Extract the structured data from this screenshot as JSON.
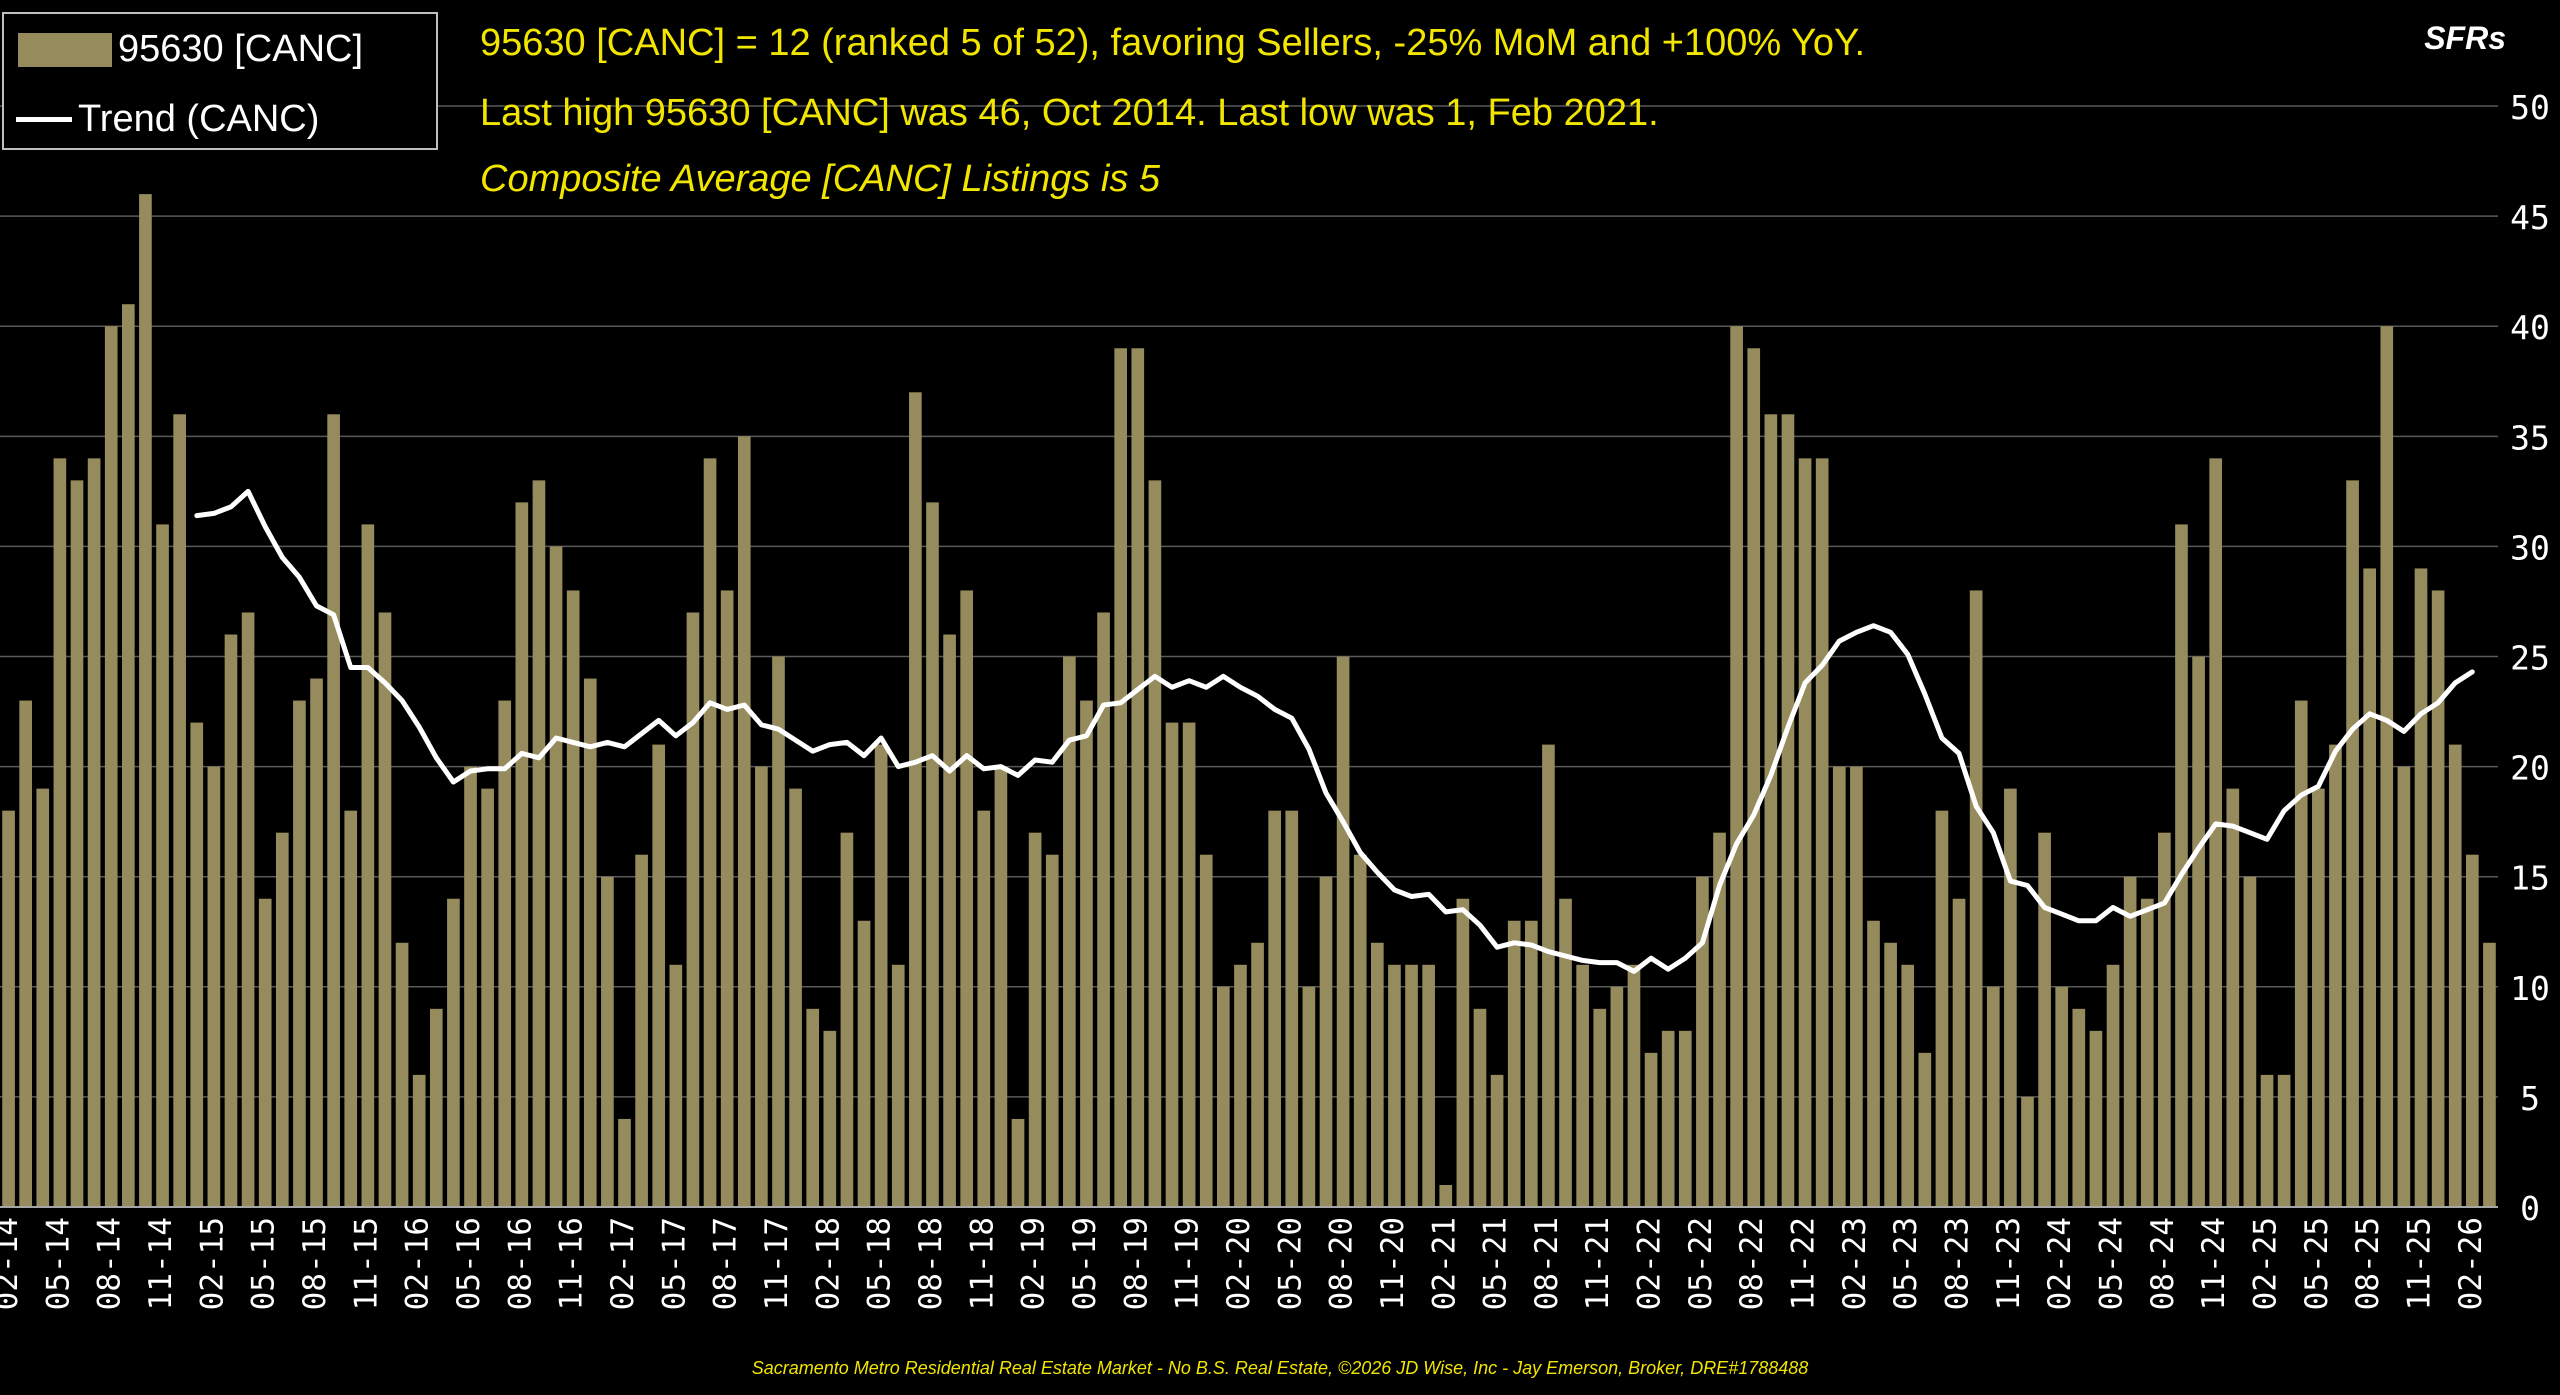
{
  "header": {
    "line1": "95630 [CANC] = 12 (ranked 5 of 52), favoring Sellers, -25% MoM and +100% YoY.",
    "line2": "Last high 95630 [CANC] was 46, Oct 2014. Last low was 1, Feb 2021.",
    "line3": "Composite Average [CANC] Listings is 5"
  },
  "unit_label": "SFRs",
  "footer": "Sacramento Metro Residential Real Estate Market - No B.S. Real Estate, ©2026 JD Wise, Inc - Jay Emerson, Broker, DRE#1788488",
  "colors": {
    "background": "#000000",
    "bar": "#968b5c",
    "trend": "#ffffff",
    "header_text": "#f2e600",
    "grid": "#595959",
    "axis_text": "#ffffff"
  },
  "chart_data": {
    "type": "bar",
    "title": "95630 [CANC]",
    "xlabel": "",
    "ylabel": "SFRs",
    "ylim": [
      0,
      52
    ],
    "yticks": [
      0,
      5,
      10,
      15,
      20,
      25,
      30,
      35,
      40,
      45,
      50
    ],
    "grid": true,
    "legend": "top-left",
    "x_tick_labels": [
      "02-14",
      "05-14",
      "08-14",
      "11-14",
      "02-15",
      "05-15",
      "08-15",
      "11-15",
      "02-16",
      "05-16",
      "08-16",
      "11-16",
      "02-17",
      "05-17",
      "08-17",
      "11-17",
      "02-18",
      "05-18",
      "08-18",
      "11-18",
      "02-19",
      "05-19",
      "08-19",
      "11-19",
      "02-20",
      "05-20",
      "08-20",
      "11-20",
      "02-21",
      "05-21",
      "08-21",
      "11-21",
      "02-22",
      "05-22",
      "08-22",
      "11-22",
      "02-23",
      "05-23",
      "08-23",
      "11-23",
      "02-24",
      "05-24",
      "08-24",
      "11-24",
      "02-25",
      "05-25",
      "08-25",
      "11-25",
      "02-26"
    ],
    "series": [
      {
        "name": "95630 [CANC]",
        "kind": "bar",
        "values": [
          18,
          23,
          19,
          34,
          33,
          34,
          40,
          41,
          46,
          31,
          36,
          22,
          20,
          26,
          27,
          14,
          17,
          23,
          24,
          36,
          18,
          31,
          27,
          12,
          6,
          9,
          14,
          20,
          19,
          23,
          32,
          33,
          30,
          28,
          24,
          15,
          4,
          16,
          21,
          11,
          27,
          34,
          28,
          35,
          20,
          25,
          19,
          9,
          8,
          17,
          13,
          21,
          11,
          37,
          32,
          26,
          28,
          18,
          20,
          4,
          17,
          16,
          25,
          23,
          27,
          39,
          39,
          33,
          22,
          22,
          16,
          10,
          11,
          12,
          18,
          18,
          10,
          15,
          25,
          16,
          12,
          11,
          11,
          11,
          1,
          14,
          9,
          6,
          13,
          13,
          21,
          14,
          11,
          9,
          10,
          11,
          7,
          8,
          8,
          15,
          17,
          40,
          39,
          36,
          36,
          34,
          34,
          20,
          20,
          13,
          12,
          11,
          7,
          18,
          14,
          28,
          10,
          19,
          5,
          17,
          10,
          9,
          8,
          11,
          15,
          14,
          17,
          31,
          25,
          34,
          19,
          15,
          6,
          6,
          23,
          19,
          21,
          33,
          29,
          40,
          20,
          29,
          28,
          21,
          16,
          12
        ]
      },
      {
        "name": "Trend (CANC)",
        "kind": "line",
        "start_index": 11,
        "values": [
          31.4,
          31.5,
          31.8,
          32.5,
          30.9,
          29.5,
          28.6,
          27.3,
          26.9,
          24.5,
          24.5,
          23.8,
          23,
          21.8,
          20.4,
          19.3,
          19.8,
          19.9,
          19.9,
          20.6,
          20.4,
          21.3,
          21.1,
          20.9,
          21.1,
          20.9,
          21.5,
          22.1,
          21.4,
          22,
          22.9,
          22.6,
          22.8,
          21.9,
          21.7,
          21.2,
          20.7,
          21,
          21.1,
          20.5,
          21.3,
          20,
          20.2,
          20.5,
          19.8,
          20.5,
          19.9,
          20,
          19.6,
          20.3,
          20.2,
          21.2,
          21.4,
          22.8,
          22.9,
          23.5,
          24.1,
          23.6,
          23.9,
          23.6,
          24.1,
          23.6,
          23.2,
          22.6,
          22.2,
          20.8,
          18.8,
          17.5,
          16.1,
          15.2,
          14.4,
          14.1,
          14.2,
          13.4,
          13.5,
          12.8,
          11.8,
          12,
          11.9,
          11.6,
          11.4,
          11.2,
          11.1,
          11.1,
          10.7,
          11.3,
          10.8,
          11.3,
          12,
          14.6,
          16.5,
          17.8,
          19.6,
          21.8,
          23.8,
          24.6,
          25.7,
          26.1,
          26.4,
          26.1,
          25.1,
          23.3,
          21.3,
          20.6,
          18.2,
          17,
          14.8,
          14.6,
          13.6,
          13.3,
          13,
          13,
          13.6,
          13.2,
          13.5,
          13.8,
          15.1,
          16.3,
          17.4,
          17.3,
          17,
          16.7,
          18,
          18.7,
          19.1,
          20.7,
          21.7,
          22.4,
          22.1,
          21.6,
          22.4,
          22.9,
          23.8,
          24.3
        ]
      }
    ]
  }
}
